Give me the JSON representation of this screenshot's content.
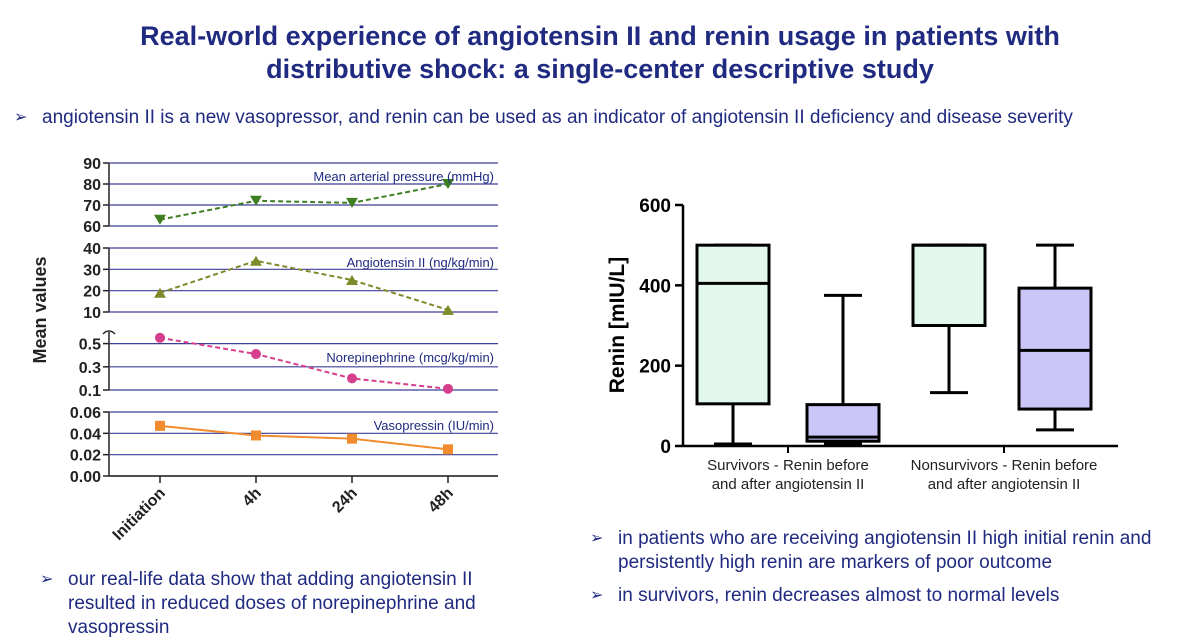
{
  "title": {
    "line1": "Real-world experience of angiotensin II and renin usage in patients with",
    "line2": "distributive shock: a single-center descriptive study"
  },
  "bullets": {
    "intro": "angiotensin II is a new vasopressor, and renin can be used as an indicator of angiotensin II deficiency and disease severity",
    "left": "our real-life data show that adding angiotensin II resulted in reduced doses of norepinephrine and vasopressin",
    "right1": "in patients who are receiving angiotensin II high initial renin and persistently high renin are markers of poor outcome",
    "right2": "in survivors, renin decreases almost to normal levels",
    "arrow_glyph": "➢"
  },
  "colors": {
    "title": "#1f2a80",
    "grid": "#3c3f96",
    "map": "#3e7f22",
    "ang": "#7f8a2a",
    "norepi": "#d63e8e",
    "vaso": "#f08c2e",
    "box_survivor": "#e2f8ec",
    "box_nonsurvivor": "#cac6f8"
  },
  "chart_data": [
    {
      "type": "line",
      "ylabel": "Mean values",
      "categories": [
        "Initiation",
        "4h",
        "24h",
        "48h"
      ],
      "series": [
        {
          "name": "Mean arterial pressure (mmHg)",
          "values": [
            63,
            72,
            71,
            80
          ],
          "marker": "triangle-down",
          "ylim": [
            60,
            90
          ],
          "ticks": [
            "90",
            "80",
            "70",
            "60"
          ]
        },
        {
          "name": "Angiotensin II (ng/kg/min)",
          "values": [
            19,
            34,
            25,
            11
          ],
          "marker": "triangle-up",
          "ylim": [
            10,
            40
          ],
          "ticks": [
            "40",
            "30",
            "20",
            "10"
          ]
        },
        {
          "name": "Norepinephrine (mcg/kg/min)",
          "values": [
            0.55,
            0.41,
            0.2,
            0.11
          ],
          "marker": "circle",
          "ylim": [
            0.1,
            0.6
          ],
          "ticks": [
            "0.5",
            "0.3",
            "0.1"
          ]
        },
        {
          "name": "Vasopressin (IU/min)",
          "values": [
            0.047,
            0.038,
            0.035,
            0.025
          ],
          "marker": "square",
          "ylim": [
            0,
            0.06
          ],
          "ticks": [
            "0.06",
            "0.04",
            "0.02",
            "0.00"
          ]
        }
      ]
    },
    {
      "type": "box",
      "ylabel": "Renin [mIU/L]",
      "ylim": [
        0,
        600
      ],
      "yticks": [
        "0",
        "200",
        "400",
        "600"
      ],
      "groups": [
        {
          "label_line1": "Survivors - Renin before",
          "label_line2": "and after angiotensin II",
          "boxes": [
            {
              "min": 5,
              "q1": 105,
              "median": 405,
              "q3": 500,
              "max": 500
            },
            {
              "min": 5,
              "q1": 12,
              "median": 22,
              "q3": 103,
              "max": 375
            }
          ]
        },
        {
          "label_line1": "Nonsurvivors - Renin before",
          "label_line2": "and after angiotensin II",
          "boxes": [
            {
              "min": 133,
              "q1": 300,
              "median": 500,
              "q3": 500,
              "max": 500
            },
            {
              "min": 40,
              "q1": 92,
              "median": 238,
              "q3": 393,
              "max": 500
            }
          ]
        }
      ]
    }
  ]
}
